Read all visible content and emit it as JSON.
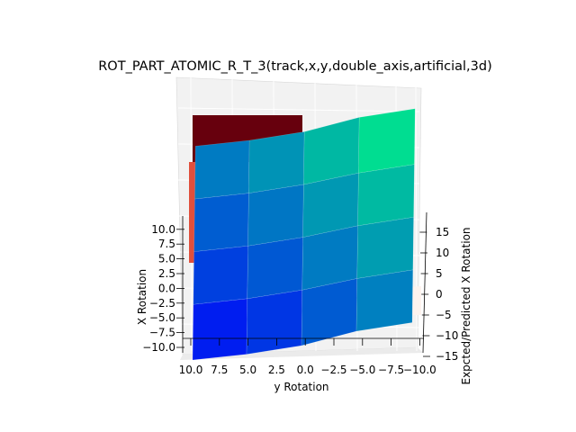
{
  "chart_data": {
    "type": "surface3d",
    "title": "ROT_PART_ATOMIC_R_T_3(track,x,y,double_axis,artificial,3d)",
    "xlabel": "y Rotation",
    "ylabel": "X Rotation",
    "zlabel": "Expcted/Predicted X Rotation",
    "x_ticks": [
      "10.0",
      "7.5",
      "5.0",
      "2.5",
      "0.0",
      "−2.5",
      "−5.0",
      "−7.5",
      "−10.0"
    ],
    "y_ticks": [
      "−10.0",
      "−7.5",
      "−5.0",
      "−2.5",
      "0.0",
      "2.5",
      "5.0",
      "7.5",
      "10.0"
    ],
    "z_ticks": [
      "−15",
      "−10",
      "−5",
      "0",
      "5",
      "10",
      "15"
    ],
    "y_rotation_values": [
      10,
      5,
      0,
      -5,
      -10
    ],
    "x_rotation_values": [
      -10,
      -5,
      0,
      5,
      10
    ],
    "predicted_surface": {
      "colormap": "winter",
      "z": [
        [
          -10,
          -8,
          -5,
          0,
          3
        ],
        [
          -6,
          -4,
          -1,
          3,
          6
        ],
        [
          -3,
          -1,
          2,
          6,
          9
        ],
        [
          0,
          2,
          5,
          9,
          12
        ],
        [
          3,
          5,
          8,
          13,
          16
        ]
      ]
    },
    "expected_surface": {
      "colormap": "reds",
      "note_visible": "partially hidden behind predicted surface"
    },
    "grid": true,
    "pane_color": "#f2f2f2"
  }
}
